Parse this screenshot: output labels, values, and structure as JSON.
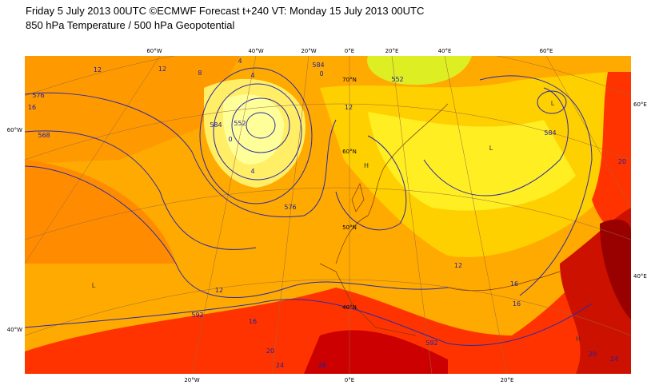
{
  "header": {
    "title": "Friday 5 July 2013 00UTC ©ECMWF Forecast t+240 VT: Monday 15 July 2013 00UTC",
    "subtitle": "850 hPa Temperature / 500 hPa Geopotential"
  },
  "map": {
    "top_labels": [
      "60°W",
      "40°W",
      "20°W",
      "0°E",
      "20°E",
      "40°E",
      "60°E"
    ],
    "bottom_labels": [
      "20°W",
      "0°E",
      "20°E"
    ],
    "left_labels": [
      "60°W",
      "40°W"
    ],
    "right_labels": [
      "60°E",
      "40°E"
    ],
    "lat_labels": [
      "70°N",
      "60°N",
      "50°N",
      "40°N"
    ],
    "contour_labels": [
      "576",
      "568",
      "12",
      "12",
      "16",
      "8",
      "4",
      "4",
      "584",
      "0",
      "552",
      "584",
      "0",
      "12",
      "4",
      "576",
      "12",
      "592",
      "16",
      "20",
      "24",
      "28",
      "12",
      "16",
      "16",
      "592",
      "20",
      "24",
      "20",
      "584",
      "552"
    ],
    "pressure_marks": [
      "L",
      "L",
      "L",
      "H",
      "H"
    ]
  }
}
